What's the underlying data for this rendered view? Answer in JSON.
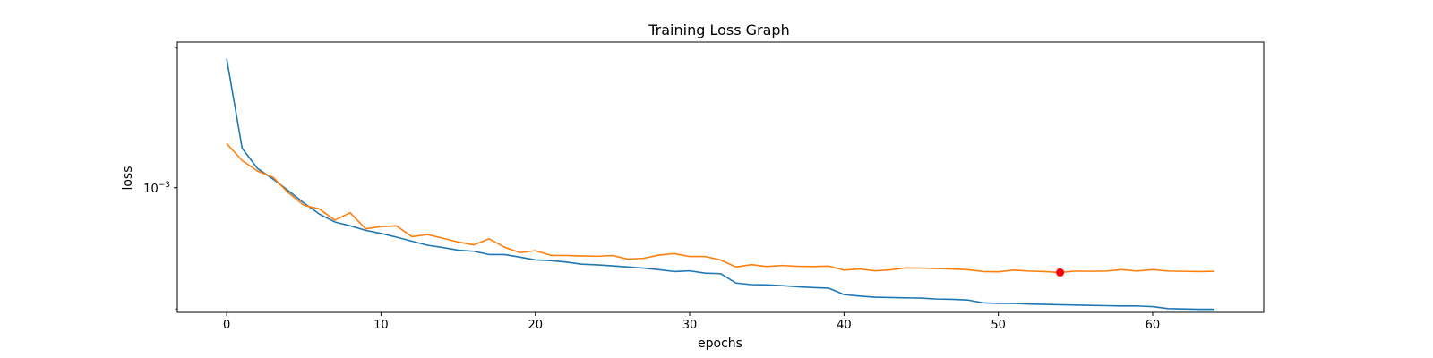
{
  "chart_data": {
    "type": "line",
    "title": "Training Loss Graph",
    "xlabel": "epochs",
    "ylabel": "loss",
    "xlim": [
      -3.2,
      67.2
    ],
    "ylim": [
      0.00029,
      0.00425
    ],
    "yscale": "log",
    "grid": false,
    "x_ticks": [
      0,
      10,
      20,
      30,
      40,
      50,
      60
    ],
    "y_ticks": [
      {
        "value": 0.001,
        "label": "10",
        "exp": "−3"
      }
    ],
    "y_minor_ticks": [
      0.0003,
      0.004
    ],
    "series": [
      {
        "color": "#1f77b4",
        "values": [
          0.0036,
          0.00148,
          0.00121,
          0.00109,
          0.00097,
          0.00086,
          0.00077,
          0.000712,
          0.000685,
          0.000655,
          0.000635,
          0.000612,
          0.000588,
          0.000565,
          0.000552,
          0.000538,
          0.000532,
          0.000515,
          0.000515,
          0.000502,
          0.000488,
          0.000485,
          0.000478,
          0.000468,
          0.000465,
          0.00046,
          0.000455,
          0.00045,
          0.000443,
          0.000435,
          0.000438,
          0.000428,
          0.000426,
          0.000388,
          0.000382,
          0.000381,
          0.000378,
          0.000374,
          0.000371,
          0.000369,
          0.000346,
          0.000341,
          0.000337,
          0.000336,
          0.000335,
          0.000334,
          0.000331,
          0.00033,
          0.000328,
          0.000319,
          0.000317,
          0.000317,
          0.000315,
          0.000314,
          0.000313,
          0.000312,
          0.000311,
          0.00031,
          0.000309,
          0.000309,
          0.000307,
          0.000301,
          0.0003,
          0.000299,
          0.000299
        ]
      },
      {
        "color": "#ff7f0e",
        "values": [
          0.00155,
          0.00131,
          0.00118,
          0.00111,
          0.00095,
          0.00084,
          0.00081,
          0.000725,
          0.00078,
          0.000665,
          0.00068,
          0.000685,
          0.000615,
          0.000628,
          0.000606,
          0.000583,
          0.000567,
          0.000602,
          0.000554,
          0.000525,
          0.000535,
          0.000511,
          0.00051,
          0.000508,
          0.000506,
          0.00051,
          0.000492,
          0.000496,
          0.000512,
          0.00052,
          0.000505,
          0.000505,
          0.000488,
          0.000455,
          0.000466,
          0.000457,
          0.000462,
          0.000458,
          0.000457,
          0.000459,
          0.000441,
          0.000446,
          0.000438,
          0.000442,
          0.000451,
          0.00045,
          0.000448,
          0.000446,
          0.000443,
          0.000435,
          0.000434,
          0.000441,
          0.000437,
          0.000435,
          0.000431,
          0.000437,
          0.000436,
          0.000437,
          0.000443,
          0.000437,
          0.000443,
          0.000437,
          0.000436,
          0.000435,
          0.000436
        ]
      }
    ],
    "highlight_point": {
      "x": 54,
      "y": 0.000431,
      "color": "#ff0000"
    }
  }
}
